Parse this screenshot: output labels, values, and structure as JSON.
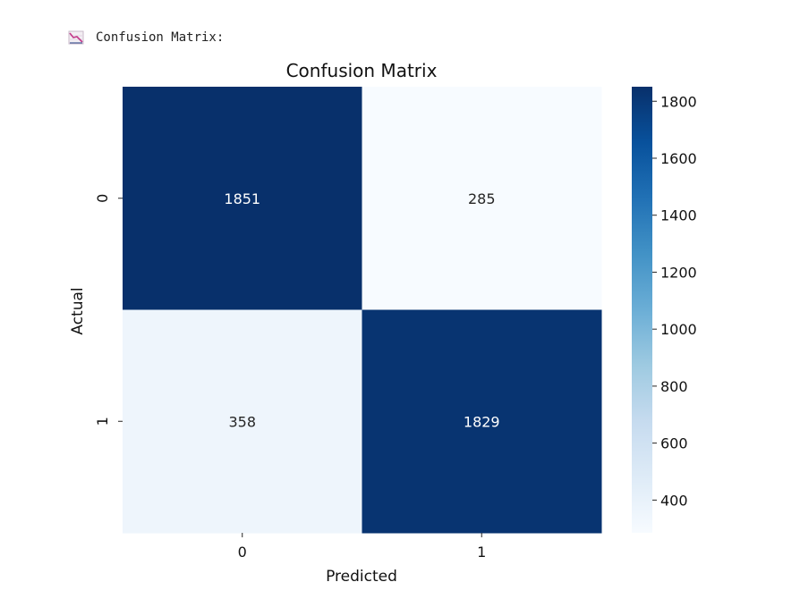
{
  "output": {
    "icon": "chart-decreasing-emoji-icon",
    "label": "Confusion Matrix:"
  },
  "chart_data": {
    "type": "heatmap",
    "title": "Confusion Matrix",
    "xlabel": "Predicted",
    "ylabel": "Actual",
    "x_categories": [
      "0",
      "1"
    ],
    "y_categories": [
      "0",
      "1"
    ],
    "values": [
      [
        1851,
        285
      ],
      [
        358,
        1829
      ]
    ],
    "colormap": "Blues",
    "color_range": [
      285,
      1851
    ],
    "colorbar_ticks": [
      400,
      600,
      800,
      1000,
      1200,
      1400,
      1600,
      1800
    ],
    "grid": false
  }
}
